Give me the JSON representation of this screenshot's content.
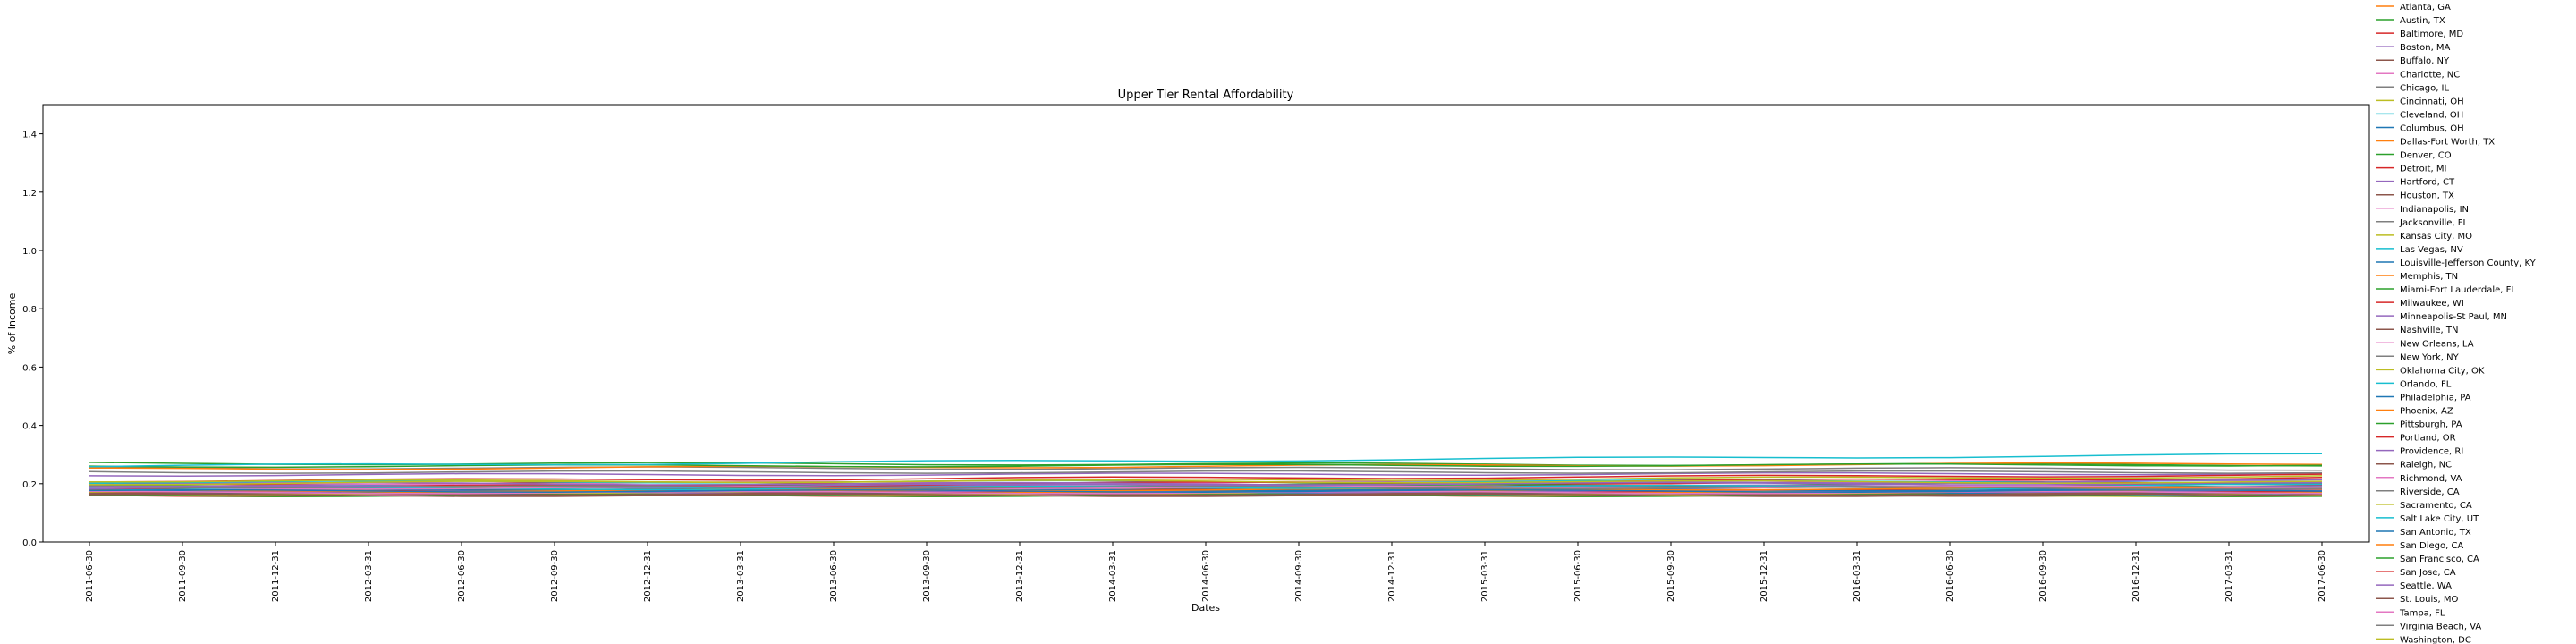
{
  "chart_data": {
    "type": "line",
    "title": "Upper Tier Rental Affordability",
    "xlabel": "Dates",
    "ylabel": "% of Income",
    "ylim": [
      0.0,
      1.5
    ],
    "yticks": [
      "0.0",
      "0.2",
      "0.4",
      "0.6",
      "0.8",
      "1.0",
      "1.2",
      "1.4"
    ],
    "categories": [
      "2011-06-30",
      "2011-09-30",
      "2011-12-31",
      "2012-03-31",
      "2012-06-30",
      "2012-09-30",
      "2012-12-31",
      "2013-03-31",
      "2013-06-30",
      "2013-09-30",
      "2013-12-31",
      "2014-03-31",
      "2014-06-30",
      "2014-09-30",
      "2014-12-31",
      "2015-03-31",
      "2015-06-30",
      "2015-09-30",
      "2015-12-31",
      "2016-03-31",
      "2016-06-30",
      "2016-09-30",
      "2016-12-31",
      "2017-03-31",
      "2017-06-30"
    ],
    "grid": false,
    "legend_placement": "outside-right",
    "series": [
      {
        "name": "Atlanta, GA",
        "color": "#ff7f0e",
        "start": 0.17,
        "end": 0.165
      },
      {
        "name": "Austin, TX",
        "color": "#2ca02c",
        "start": 0.19,
        "end": 0.19
      },
      {
        "name": "Baltimore, MD",
        "color": "#d62728",
        "start": 0.2,
        "end": 0.205
      },
      {
        "name": "Boston, MA",
        "color": "#9467bd",
        "start": 0.23,
        "end": 0.235
      },
      {
        "name": "Buffalo, NY",
        "color": "#8c564b",
        "start": 0.165,
        "end": 0.16
      },
      {
        "name": "Charlotte, NC",
        "color": "#e377c2",
        "start": 0.17,
        "end": 0.17
      },
      {
        "name": "Chicago, IL",
        "color": "#7f7f7f",
        "start": 0.18,
        "end": 0.18
      },
      {
        "name": "Cincinnati, OH",
        "color": "#bcbd22",
        "start": 0.16,
        "end": 0.16
      },
      {
        "name": "Cleveland, OH",
        "color": "#17becf",
        "start": 0.165,
        "end": 0.165
      },
      {
        "name": "Columbus, OH",
        "color": "#1f77b4",
        "start": 0.175,
        "end": 0.17
      },
      {
        "name": "Dallas-Fort Worth, TX",
        "color": "#ff7f0e",
        "start": 0.175,
        "end": 0.185
      },
      {
        "name": "Denver, CO",
        "color": "#2ca02c",
        "start": 0.19,
        "end": 0.2
      },
      {
        "name": "Detroit, MI",
        "color": "#d62728",
        "start": 0.16,
        "end": 0.16
      },
      {
        "name": "Hartford, CT",
        "color": "#9467bd",
        "start": 0.195,
        "end": 0.19
      },
      {
        "name": "Houston, TX",
        "color": "#8c564b",
        "start": 0.18,
        "end": 0.175
      },
      {
        "name": "Indianapolis, IN",
        "color": "#e377c2",
        "start": 0.165,
        "end": 0.16
      },
      {
        "name": "Jacksonville, FL",
        "color": "#7f7f7f",
        "start": 0.185,
        "end": 0.18
      },
      {
        "name": "Kansas City, MO",
        "color": "#bcbd22",
        "start": 0.17,
        "end": 0.17
      },
      {
        "name": "Las Vegas, NV",
        "color": "#17becf",
        "start": 0.19,
        "end": 0.185
      },
      {
        "name": "Louisville-Jefferson County, KY",
        "color": "#1f77b4",
        "start": 0.165,
        "end": 0.165
      },
      {
        "name": "Memphis, TN",
        "color": "#ff7f0e",
        "start": 0.175,
        "end": 0.17
      },
      {
        "name": "Miami-Fort Lauderdale, FL",
        "color": "#2ca02c",
        "start": 0.27,
        "end": 0.265
      },
      {
        "name": "Milwaukee, WI",
        "color": "#d62728",
        "start": 0.175,
        "end": 0.175
      },
      {
        "name": "Minneapolis-St Paul, MN",
        "color": "#9467bd",
        "start": 0.17,
        "end": 0.175
      },
      {
        "name": "Nashville, TN",
        "color": "#8c564b",
        "start": 0.18,
        "end": 0.195
      },
      {
        "name": "New Orleans, LA",
        "color": "#e377c2",
        "start": 0.2,
        "end": 0.21
      },
      {
        "name": "New York, NY",
        "color": "#7f7f7f",
        "start": 0.255,
        "end": 0.25
      },
      {
        "name": "Oklahoma City, OK",
        "color": "#bcbd22",
        "start": 0.165,
        "end": 0.16
      },
      {
        "name": "Orlando, FL",
        "color": "#17becf",
        "start": 0.205,
        "end": 0.21
      },
      {
        "name": "Philadelphia, PA",
        "color": "#1f77b4",
        "start": 0.18,
        "end": 0.18
      },
      {
        "name": "Phoenix, AZ",
        "color": "#ff7f0e",
        "start": 0.175,
        "end": 0.185
      },
      {
        "name": "Pittsburgh, PA",
        "color": "#2ca02c",
        "start": 0.16,
        "end": 0.16
      },
      {
        "name": "Portland, OR",
        "color": "#d62728",
        "start": 0.185,
        "end": 0.22
      },
      {
        "name": "Providence, RI",
        "color": "#9467bd",
        "start": 0.2,
        "end": 0.2
      },
      {
        "name": "Raleigh, NC",
        "color": "#8c564b",
        "start": 0.165,
        "end": 0.165
      },
      {
        "name": "Richmond, VA",
        "color": "#e377c2",
        "start": 0.17,
        "end": 0.17
      },
      {
        "name": "Riverside, CA",
        "color": "#7f7f7f",
        "start": 0.24,
        "end": 0.24
      },
      {
        "name": "Sacramento, CA",
        "color": "#bcbd22",
        "start": 0.2,
        "end": 0.225
      },
      {
        "name": "Salt Lake City, UT",
        "color": "#17becf",
        "start": 0.18,
        "end": 0.195
      },
      {
        "name": "San Antonio, TX",
        "color": "#1f77b4",
        "start": 0.175,
        "end": 0.175
      },
      {
        "name": "San Diego, CA",
        "color": "#ff7f0e",
        "start": 0.25,
        "end": 0.27
      },
      {
        "name": "San Francisco, CA",
        "color": "#2ca02c",
        "start": 0.26,
        "end": 0.265
      },
      {
        "name": "San Jose, CA",
        "color": "#d62728",
        "start": 0.21,
        "end": 0.23
      },
      {
        "name": "Seattle, WA",
        "color": "#9467bd",
        "start": 0.185,
        "end": 0.21
      },
      {
        "name": "St. Louis, MO",
        "color": "#8c564b",
        "start": 0.16,
        "end": 0.16
      },
      {
        "name": "Tampa, FL",
        "color": "#e377c2",
        "start": 0.185,
        "end": 0.19
      },
      {
        "name": "Virginia Beach, VA",
        "color": "#7f7f7f",
        "start": 0.19,
        "end": 0.185
      },
      {
        "name": "Washington, DC",
        "color": "#bcbd22",
        "start": 0.21,
        "end": 0.205
      },
      {
        "name": "",
        "color": "#17becf",
        "start": 0.26,
        "end": 0.3
      }
    ]
  }
}
